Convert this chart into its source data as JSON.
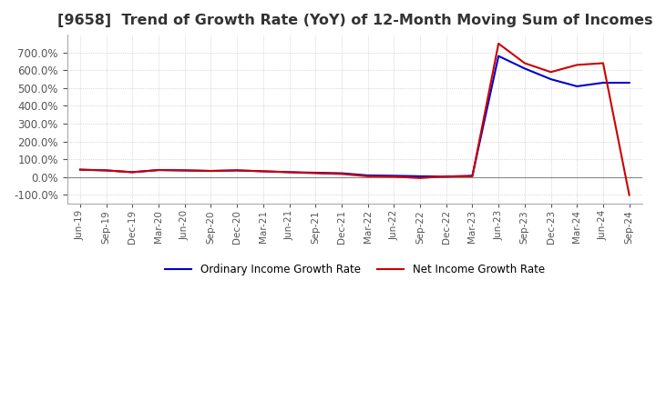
{
  "title": "[9658]  Trend of Growth Rate (YoY) of 12-Month Moving Sum of Incomes",
  "title_fontsize": 11.5,
  "ylim": [
    -150,
    800
  ],
  "yticks": [
    -100,
    0,
    100,
    200,
    300,
    400,
    500,
    600,
    700
  ],
  "background_color": "#ffffff",
  "plot_bg_color": "#ffffff",
  "grid_color": "#bbbbbb",
  "legend_labels": [
    "Ordinary Income Growth Rate",
    "Net Income Growth Rate"
  ],
  "legend_colors": [
    "#0000cc",
    "#cc0000"
  ],
  "x_labels": [
    "Jun-19",
    "Sep-19",
    "Dec-19",
    "Mar-20",
    "Jun-20",
    "Sep-20",
    "Dec-20",
    "Mar-21",
    "Jun-21",
    "Sep-21",
    "Dec-21",
    "Mar-22",
    "Jun-22",
    "Sep-22",
    "Dec-22",
    "Mar-23",
    "Jun-23",
    "Sep-23",
    "Dec-23",
    "Mar-24",
    "Jun-24",
    "Sep-24"
  ],
  "ordinary_income_growth": [
    42,
    38,
    28,
    40,
    38,
    35,
    38,
    33,
    28,
    25,
    22,
    10,
    8,
    5,
    3,
    8,
    680,
    610,
    550,
    510,
    530,
    530
  ],
  "net_income_growth": [
    42,
    38,
    28,
    40,
    38,
    35,
    38,
    33,
    28,
    22,
    18,
    5,
    3,
    -5,
    5,
    5,
    750,
    640,
    590,
    630,
    640,
    -100
  ]
}
